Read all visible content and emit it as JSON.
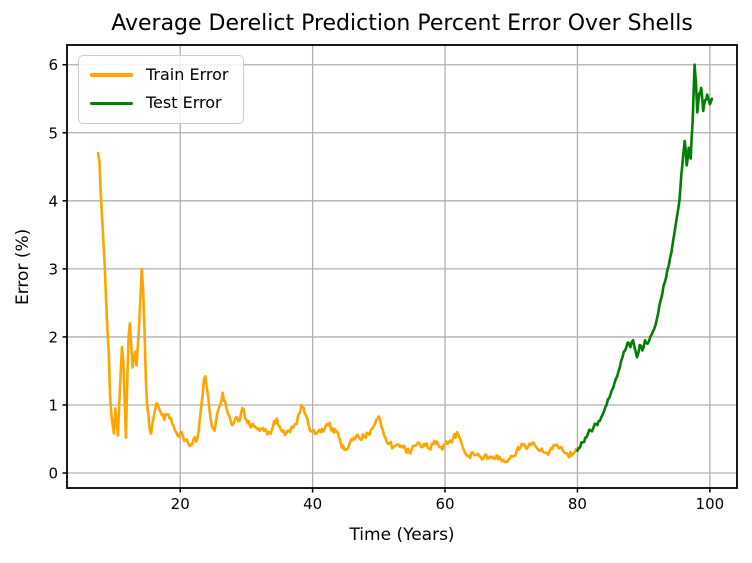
{
  "chart_data": {
    "type": "line",
    "title": "Average Derelict Prediction Percent Error Over Shells",
    "xlabel": "Time (Years)",
    "ylabel": "Error (%)",
    "xlim": [
      2.9,
      104.1
    ],
    "ylim": [
      -0.22,
      6.29
    ],
    "xticks": [
      20,
      40,
      60,
      80,
      100
    ],
    "yticks": [
      0,
      1,
      2,
      3,
      4,
      5,
      6
    ],
    "grid": true,
    "grid_color": "#b0b0b0",
    "background": "#ffffff",
    "legend_position": "upper-left",
    "series": [
      {
        "name": "Train Error",
        "color": "#FFA500",
        "jitter": 0.05,
        "x": [
          7.6,
          7.8,
          8.0,
          8.2,
          8.4,
          8.6,
          8.8,
          9.0,
          9.2,
          9.4,
          9.6,
          9.8,
          10.0,
          10.2,
          10.4,
          10.6,
          10.8,
          11.0,
          11.2,
          11.4,
          11.6,
          11.8,
          12.0,
          12.2,
          12.4,
          12.6,
          12.8,
          13.0,
          13.2,
          13.4,
          13.6,
          13.8,
          14.0,
          14.2,
          14.4,
          14.6,
          14.8,
          15.0,
          15.3,
          15.6,
          16.0,
          16.4,
          16.8,
          17.2,
          17.6,
          18.0,
          18.4,
          18.8,
          19.2,
          19.6,
          20.0,
          20.4,
          20.8,
          21.2,
          21.6,
          22.0,
          22.4,
          22.8,
          23.2,
          23.6,
          23.8,
          24.1,
          24.4,
          24.8,
          25.2,
          25.6,
          26.0,
          26.4,
          26.8,
          27.2,
          27.6,
          28.0,
          28.4,
          28.8,
          29.2,
          29.6,
          30.0,
          30.5,
          31.0,
          31.5,
          32.0,
          32.5,
          33.0,
          33.5,
          34.0,
          34.6,
          35.2,
          35.8,
          36.4,
          37.0,
          37.6,
          38.3,
          38.8,
          39.4,
          40.0,
          40.6,
          41.2,
          41.8,
          42.4,
          43.0,
          43.6,
          44.2,
          44.8,
          45.4,
          46.0,
          46.6,
          47.2,
          47.8,
          48.4,
          49.0,
          49.6,
          50.0,
          50.4,
          51.0,
          51.6,
          52.2,
          52.8,
          53.4,
          54.0,
          54.6,
          55.2,
          55.8,
          56.4,
          57.0,
          57.6,
          58.2,
          58.8,
          59.4,
          60.0,
          60.6,
          61.2,
          61.8,
          62.4,
          63.0,
          63.6,
          64.2,
          64.8,
          65.4,
          66.0,
          66.6,
          67.2,
          67.8,
          68.4,
          69.0,
          69.6,
          70.2,
          70.8,
          71.4,
          72.0,
          72.6,
          73.2,
          73.8,
          74.4,
          75.0,
          75.6,
          76.2,
          76.8,
          77.4,
          78.0,
          78.6,
          79.3,
          80.0
        ],
        "y": [
          4.7,
          4.58,
          4.1,
          3.75,
          3.4,
          3.05,
          2.55,
          2.1,
          1.8,
          1.15,
          0.85,
          0.7,
          0.58,
          0.95,
          0.75,
          0.55,
          1.05,
          1.45,
          1.85,
          1.65,
          1.1,
          0.52,
          1.3,
          2.0,
          2.2,
          1.9,
          1.55,
          1.7,
          1.78,
          1.58,
          1.85,
          2.2,
          2.6,
          3.0,
          2.7,
          2.1,
          1.4,
          1.0,
          0.72,
          0.58,
          0.82,
          1.02,
          0.95,
          0.85,
          0.78,
          0.86,
          0.8,
          0.72,
          0.62,
          0.55,
          0.58,
          0.54,
          0.48,
          0.44,
          0.42,
          0.5,
          0.46,
          0.62,
          1.0,
          1.38,
          1.42,
          1.2,
          0.95,
          0.68,
          0.62,
          0.88,
          1.0,
          1.18,
          1.05,
          0.88,
          0.78,
          0.72,
          0.82,
          0.76,
          0.88,
          0.93,
          0.78,
          0.7,
          0.72,
          0.66,
          0.62,
          0.66,
          0.62,
          0.6,
          0.68,
          0.8,
          0.64,
          0.56,
          0.62,
          0.66,
          0.72,
          1.0,
          0.88,
          0.7,
          0.62,
          0.58,
          0.6,
          0.64,
          0.7,
          0.66,
          0.6,
          0.46,
          0.34,
          0.38,
          0.48,
          0.55,
          0.5,
          0.54,
          0.58,
          0.65,
          0.78,
          0.83,
          0.68,
          0.52,
          0.44,
          0.38,
          0.42,
          0.4,
          0.36,
          0.3,
          0.4,
          0.43,
          0.38,
          0.4,
          0.36,
          0.42,
          0.46,
          0.38,
          0.42,
          0.46,
          0.5,
          0.6,
          0.48,
          0.3,
          0.25,
          0.3,
          0.27,
          0.24,
          0.26,
          0.22,
          0.24,
          0.26,
          0.2,
          0.16,
          0.2,
          0.24,
          0.32,
          0.38,
          0.42,
          0.4,
          0.44,
          0.38,
          0.33,
          0.3,
          0.27,
          0.35,
          0.42,
          0.38,
          0.3,
          0.25,
          0.28,
          0.32
        ]
      },
      {
        "name": "Test Error",
        "color": "#008000",
        "jitter": 0.04,
        "x": [
          80.0,
          80.4,
          80.8,
          81.2,
          81.6,
          82.0,
          82.4,
          82.8,
          83.2,
          83.6,
          84.0,
          84.4,
          84.8,
          85.2,
          85.6,
          86.0,
          86.4,
          86.8,
          87.2,
          87.6,
          88.0,
          88.4,
          88.8,
          89.0,
          89.4,
          89.8,
          90.2,
          90.6,
          91.0,
          91.4,
          91.8,
          92.2,
          92.6,
          93.0,
          93.4,
          93.8,
          94.2,
          94.6,
          95.0,
          95.4,
          95.7,
          96.0,
          96.2,
          96.5,
          96.8,
          97.1,
          97.4,
          97.7,
          97.9,
          98.1,
          98.4,
          98.7,
          99.0,
          99.3,
          99.6,
          100.0,
          100.3
        ],
        "y": [
          0.33,
          0.38,
          0.45,
          0.52,
          0.58,
          0.62,
          0.66,
          0.72,
          0.76,
          0.82,
          0.9,
          1.0,
          1.1,
          1.22,
          1.32,
          1.42,
          1.55,
          1.7,
          1.8,
          1.92,
          1.85,
          1.95,
          1.78,
          1.7,
          1.88,
          1.8,
          1.95,
          1.9,
          2.0,
          2.08,
          2.18,
          2.35,
          2.55,
          2.75,
          2.88,
          3.05,
          3.25,
          3.5,
          3.75,
          4.0,
          4.4,
          4.7,
          4.88,
          4.52,
          4.78,
          4.62,
          5.15,
          6.0,
          5.72,
          5.3,
          5.58,
          5.66,
          5.32,
          5.48,
          5.56,
          5.42,
          5.5
        ]
      }
    ]
  }
}
